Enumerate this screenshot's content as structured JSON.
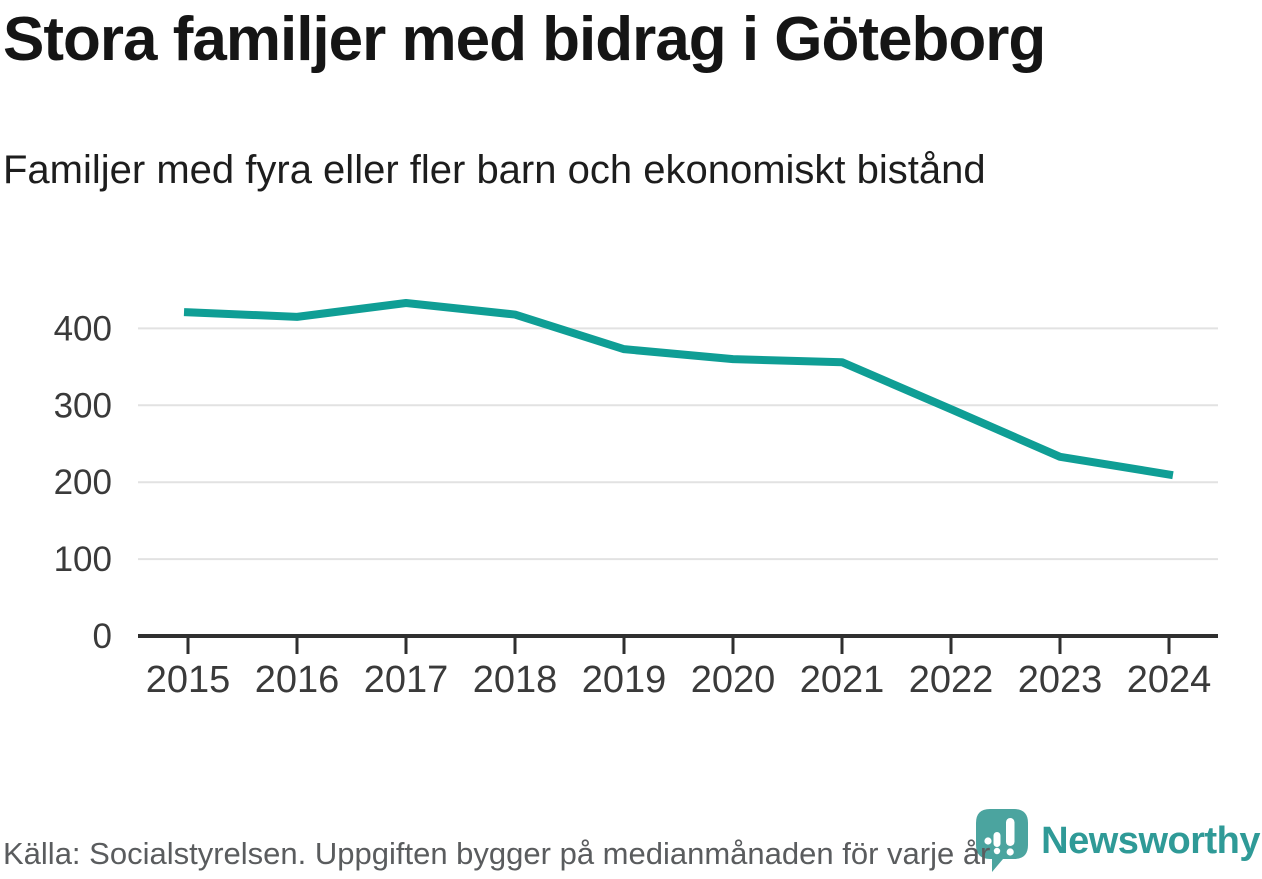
{
  "header": {
    "title": "Stora familjer med bidrag i Göteborg",
    "subtitle": "Familjer med fyra eller fler barn och ekonomiskt bistånd"
  },
  "chart_data": {
    "type": "line",
    "title": "Stora familjer med bidrag i Göteborg",
    "subtitle": "Familjer med fyra eller fler barn och ekonomiskt bistånd",
    "x": [
      2015,
      2016,
      2017,
      2018,
      2019,
      2020,
      2021,
      2022,
      2023,
      2024
    ],
    "series": [
      {
        "name": "Familjer med fyra eller fler barn och ekonomiskt bistånd",
        "values": [
          421,
          415,
          433,
          418,
          373,
          360,
          356,
          295,
          233,
          210
        ]
      }
    ],
    "xlabel": "",
    "ylabel": "",
    "ylim": [
      0,
      450
    ],
    "yticks": [
      0,
      100,
      200,
      300,
      400
    ],
    "grid": "horizontal-only",
    "legend": "none",
    "line_color": "#0F9E95",
    "axis_color": "#2f2f2f",
    "gridline_color": "#e2e2e2",
    "tick_label_color": "#3a3a3a"
  },
  "footer": {
    "source": "Källa: Socialstyrelsen. Uppgiften bygger på medianmånaden för varje år",
    "brand": "Newsworthy",
    "brand_color": "#2F9A97",
    "brand_icon": "newsworthy-speech-bubble-chart",
    "brand_icon_color": "#4BA49F"
  }
}
